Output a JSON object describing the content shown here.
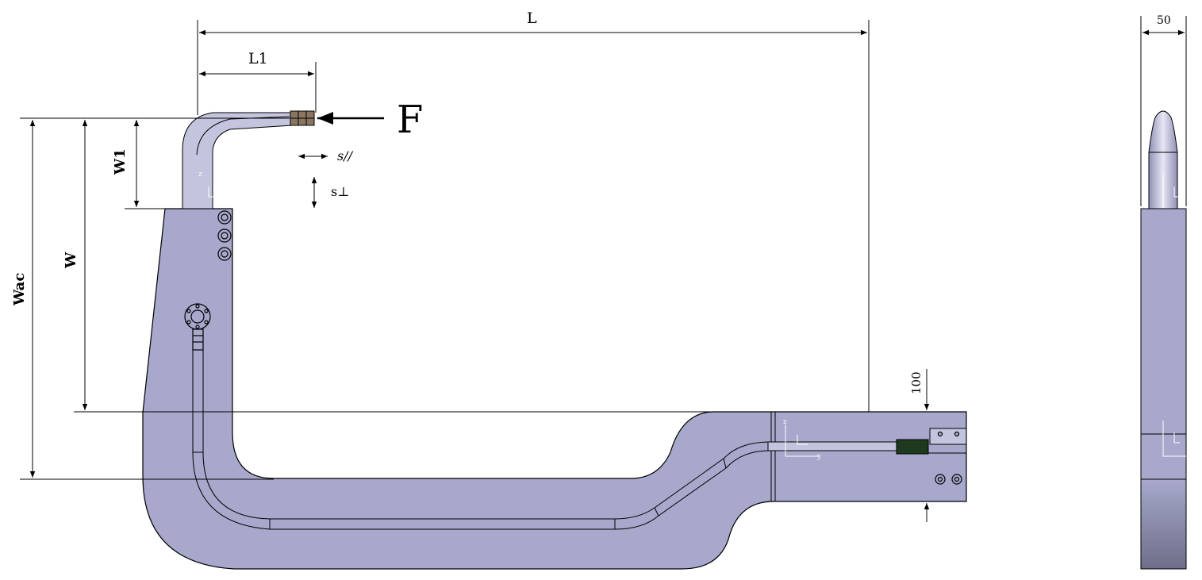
{
  "labels": {
    "L": "L",
    "L1": "L1",
    "force": "F",
    "s_parallel": "s//",
    "s_perp": "s⊥",
    "W1": "W1",
    "W": "W",
    "Wac": "Wac",
    "thickness_100": "100",
    "width_50": "50"
  },
  "axis_marks": {
    "z": "z",
    "y": "y"
  },
  "colors": {
    "body": "#a7a8cb",
    "tube": "#c3c4dd",
    "electrode": "#8a7560",
    "connector": "#1e3a1e"
  }
}
